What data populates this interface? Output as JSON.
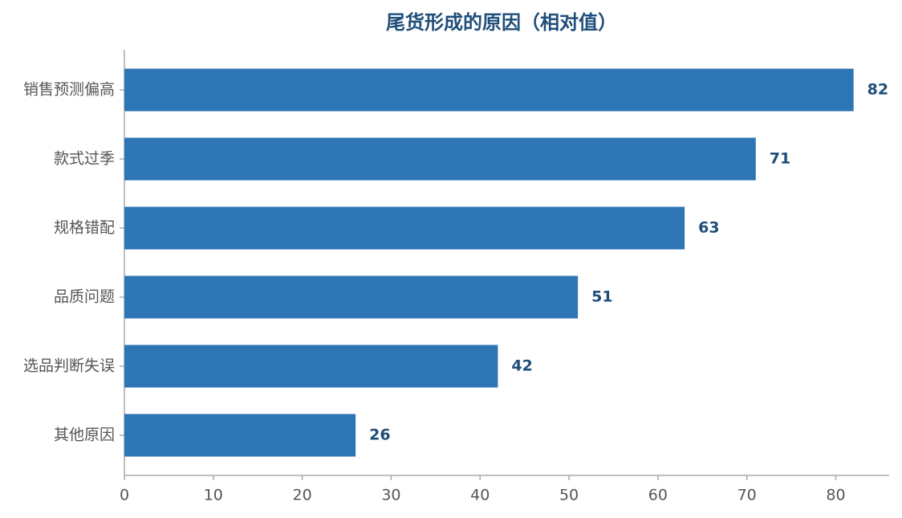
{
  "chart_data": {
    "type": "barh",
    "title": "尾货形成的原因（相对值）",
    "categories": [
      "销售预测偏高",
      "款式过季",
      "规格错配",
      "品质问题",
      "选品判断失误",
      "其他原因"
    ],
    "values": [
      82,
      71,
      63,
      51,
      42,
      26
    ],
    "color": "#2e75b6",
    "xlim": [
      0,
      86
    ],
    "xticks": [
      0,
      10,
      20,
      30,
      40,
      50,
      60,
      70,
      80
    ],
    "grid": false
  }
}
